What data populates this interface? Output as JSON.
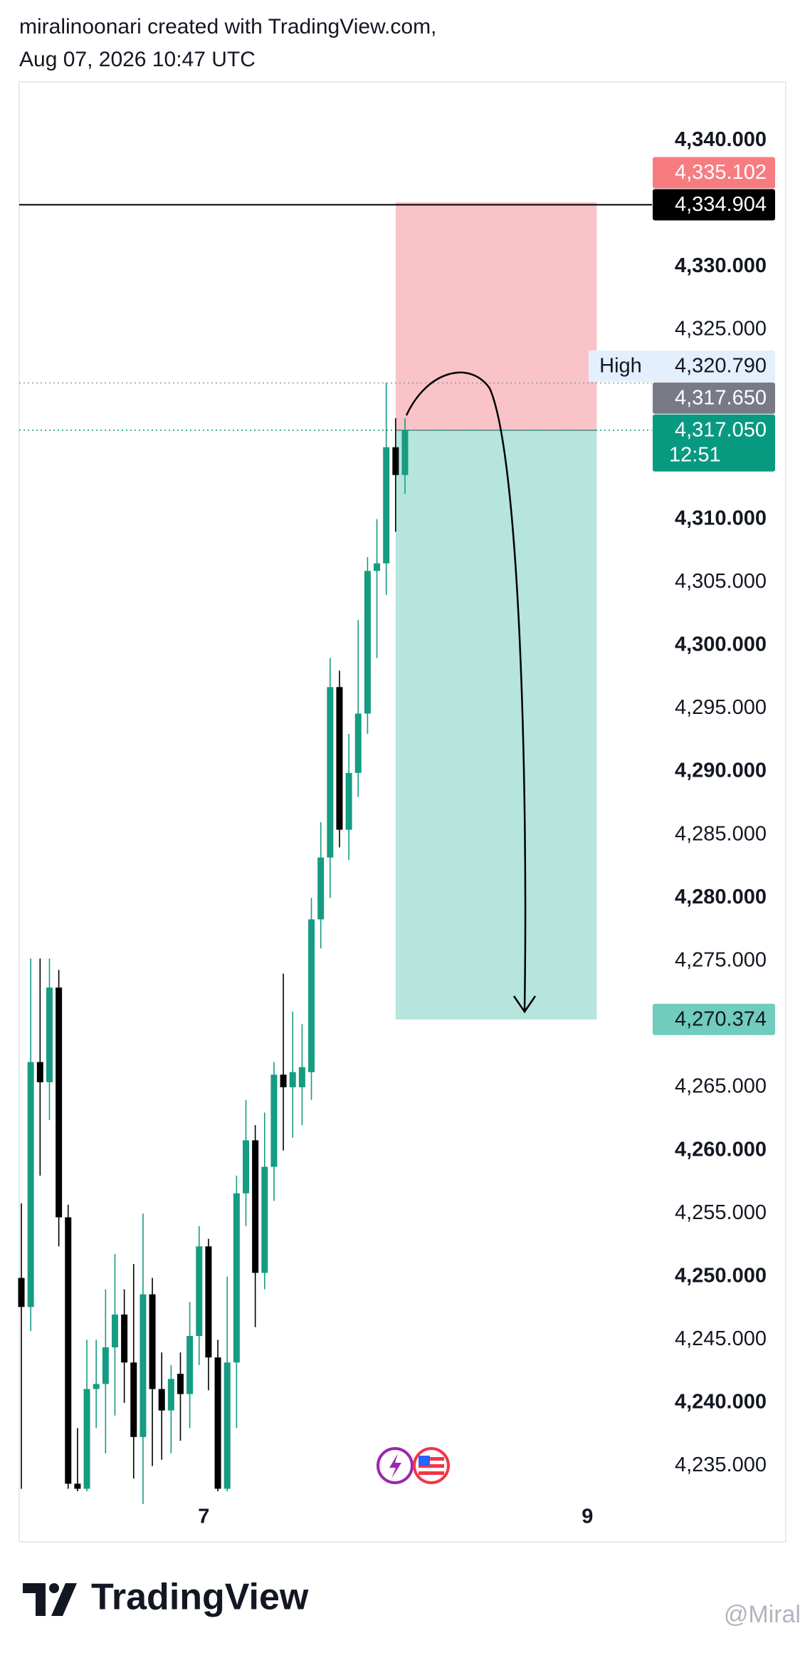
{
  "header": {
    "line1": "miralinoonari created with TradingView.com,",
    "line2": "Aug 07, 2026 10:47 UTC"
  },
  "chart_data": {
    "type": "candlestick",
    "up_color": "#169c82",
    "down_color": "#000000",
    "candles": [
      {
        "open": 4249.9,
        "high": 4255.8,
        "low": 4233.2,
        "close": 4247.6
      },
      {
        "open": 4247.6,
        "high": 4275.2,
        "low": 4245.7,
        "close": 4267.0
      },
      {
        "open": 4267.0,
        "high": 4275.2,
        "low": 4258.0,
        "close": 4265.4
      },
      {
        "open": 4265.4,
        "high": 4275.2,
        "low": 4262.4,
        "close": 4272.9
      },
      {
        "open": 4272.9,
        "high": 4274.3,
        "low": 4252.4,
        "close": 4254.7
      },
      {
        "open": 4254.7,
        "high": 4255.7,
        "low": 4233.2,
        "close": 4233.6
      },
      {
        "open": 4233.6,
        "high": 4238.0,
        "low": 4233.0,
        "close": 4233.2
      },
      {
        "open": 4233.2,
        "high": 4245.0,
        "low": 4233.0,
        "close": 4241.1
      },
      {
        "open": 4241.1,
        "high": 4245.0,
        "low": 4238.0,
        "close": 4241.5
      },
      {
        "open": 4241.5,
        "high": 4249.0,
        "low": 4236.0,
        "close": 4244.4
      },
      {
        "open": 4244.4,
        "high": 4251.8,
        "low": 4239.0,
        "close": 4247.0
      },
      {
        "open": 4247.0,
        "high": 4249.0,
        "low": 4240.0,
        "close": 4243.2
      },
      {
        "open": 4243.2,
        "high": 4251.0,
        "low": 4234.0,
        "close": 4237.3
      },
      {
        "open": 4237.3,
        "high": 4255.0,
        "low": 4232.0,
        "close": 4248.6
      },
      {
        "open": 4248.6,
        "high": 4249.9,
        "low": 4235.0,
        "close": 4241.1
      },
      {
        "open": 4241.1,
        "high": 4244.0,
        "low": 4235.5,
        "close": 4239.4
      },
      {
        "open": 4239.4,
        "high": 4243.0,
        "low": 4236.0,
        "close": 4241.9
      },
      {
        "open": 4242.3,
        "high": 4244.0,
        "low": 4237.0,
        "close": 4240.7
      },
      {
        "open": 4240.7,
        "high": 4248.0,
        "low": 4238.0,
        "close": 4245.3
      },
      {
        "open": 4245.3,
        "high": 4254.0,
        "low": 4243.0,
        "close": 4252.4
      },
      {
        "open": 4252.4,
        "high": 4253.0,
        "low": 4241.0,
        "close": 4243.6
      },
      {
        "open": 4243.6,
        "high": 4245.0,
        "low": 4233.0,
        "close": 4233.2
      },
      {
        "open": 4233.2,
        "high": 4250.0,
        "low": 4233.0,
        "close": 4243.2
      },
      {
        "open": 4243.2,
        "high": 4258.0,
        "low": 4238.0,
        "close": 4256.6
      },
      {
        "open": 4256.6,
        "high": 4264.0,
        "low": 4254.0,
        "close": 4260.8
      },
      {
        "open": 4260.8,
        "high": 4262.0,
        "low": 4246.0,
        "close": 4250.3
      },
      {
        "open": 4250.3,
        "high": 4263.0,
        "low": 4249.0,
        "close": 4258.7
      },
      {
        "open": 4258.7,
        "high": 4267.0,
        "low": 4256.0,
        "close": 4266.0
      },
      {
        "open": 4266.0,
        "high": 4274.0,
        "low": 4260.0,
        "close": 4265.0
      },
      {
        "open": 4265.0,
        "high": 4271.0,
        "low": 4261.0,
        "close": 4266.2
      },
      {
        "open": 4265.0,
        "high": 4270.0,
        "low": 4262.0,
        "close": 4266.6
      },
      {
        "open": 4266.2,
        "high": 4280.0,
        "low": 4264.0,
        "close": 4278.3
      },
      {
        "open": 4278.3,
        "high": 4286.0,
        "low": 4276.0,
        "close": 4283.2
      },
      {
        "open": 4283.2,
        "high": 4299.0,
        "low": 4280.0,
        "close": 4296.7
      },
      {
        "open": 4296.7,
        "high": 4298.0,
        "low": 4284.0,
        "close": 4285.4
      },
      {
        "open": 4285.4,
        "high": 4293.0,
        "low": 4283.0,
        "close": 4289.9
      },
      {
        "open": 4289.9,
        "high": 4302.0,
        "low": 4288.0,
        "close": 4294.6
      },
      {
        "open": 4294.6,
        "high": 4307.0,
        "low": 4293.0,
        "close": 4305.9
      },
      {
        "open": 4305.9,
        "high": 4310.0,
        "low": 4299.0,
        "close": 4306.5
      },
      {
        "open": 4306.5,
        "high": 4320.8,
        "low": 4304.0,
        "close": 4315.7
      },
      {
        "open": 4315.7,
        "high": 4318.0,
        "low": 4309.0,
        "close": 4313.5
      },
      {
        "open": 4313.5,
        "high": 4318.0,
        "low": 4312.0,
        "close": 4317.05
      }
    ],
    "xlim": [
      -0.23,
      67.4
    ],
    "xticks": [
      {
        "value": 19.5,
        "label": "7"
      },
      {
        "value": 60.5,
        "label": "9"
      }
    ],
    "ylim": [
      4233.0,
      4344.6
    ],
    "yticks": [
      {
        "value": 4340,
        "label": "4,340.000"
      },
      {
        "value": 4330,
        "label": "4,330.000"
      },
      {
        "value": 4325,
        "label": "4,325.000"
      },
      {
        "value": 4310,
        "label": "4,310.000"
      },
      {
        "value": 4305,
        "label": "4,305.000"
      },
      {
        "value": 4300,
        "label": "4,300.000"
      },
      {
        "value": 4295,
        "label": "4,295.000"
      },
      {
        "value": 4290,
        "label": "4,290.000"
      },
      {
        "value": 4285,
        "label": "4,285.000"
      },
      {
        "value": 4280,
        "label": "4,280.000"
      },
      {
        "value": 4275,
        "label": "4,275.000"
      },
      {
        "value": 4265,
        "label": "4,265.000"
      },
      {
        "value": 4260,
        "label": "4,260.000"
      },
      {
        "value": 4255,
        "label": "4,255.000"
      },
      {
        "value": 4250,
        "label": "4,250.000"
      },
      {
        "value": 4245,
        "label": "4,245.000"
      },
      {
        "value": 4240,
        "label": "4,240.000"
      },
      {
        "value": 4235,
        "label": "4,235.000"
      }
    ],
    "position": {
      "start": 40,
      "end": 61.5,
      "entry": 4317.05,
      "stop": 4335.102,
      "target": 4270.374,
      "profit_color": "#b5e5dd",
      "loss_color": "#fac3c8"
    },
    "horizontal_line": {
      "value": 4334.904,
      "color": "#000000"
    },
    "price_labels": [
      {
        "value": 4335.102,
        "label": "4,335.102",
        "background": "#f77c80",
        "color": "#ffffff"
      },
      {
        "value": 4334.904,
        "label": "4,334.904",
        "background": "#000000",
        "color": "#ffffff"
      },
      {
        "value": 4320.79,
        "label": "4,320.790",
        "title": "High",
        "background": "#e3effd",
        "color": "#131722",
        "dotted": true
      },
      {
        "value": 4317.65,
        "label": "4,317.650",
        "background": "#787b86",
        "color": "#ffffff"
      },
      {
        "value": 4317.05,
        "label": "4,317.050",
        "sublabel": "12:51",
        "background": "#089981",
        "color": "#ffffff",
        "dotted": true
      },
      {
        "value": 4270.374,
        "label": "4,270.374",
        "background": "#70ccbd",
        "color": "#131722"
      }
    ]
  },
  "footer": {
    "logo": "TradingView",
    "watermark": "@Miral"
  }
}
